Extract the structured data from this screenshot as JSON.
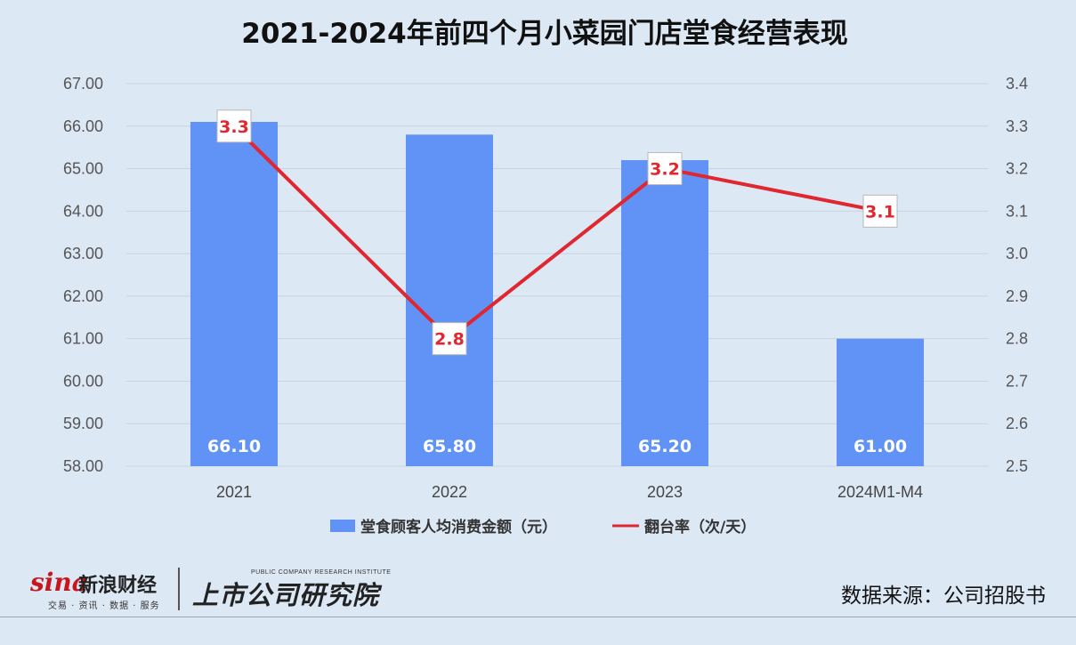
{
  "colors": {
    "background": "#dde8f5",
    "bar": "#6192f5",
    "line": "#e0262e",
    "grid": "#c9d3df"
  },
  "chart_data": {
    "type": "bar",
    "title": "2021-2024年前四个月小菜园门店堂食经营表现",
    "categories": [
      "2021",
      "2022",
      "2023",
      "2024M1-M4"
    ],
    "series": [
      {
        "name": "堂食顾客人均消费金额（元）",
        "type": "bar",
        "axis": "left",
        "values": [
          66.1,
          65.8,
          65.2,
          61.0
        ],
        "labels": [
          "66.10",
          "65.80",
          "65.20",
          "61.00"
        ]
      },
      {
        "name": "翻台率（次/天）",
        "type": "line",
        "axis": "right",
        "values": [
          3.3,
          2.8,
          3.2,
          3.1
        ],
        "labels": [
          "3.3",
          "2.8",
          "3.2",
          "3.1"
        ]
      }
    ],
    "ylim_left": [
      58,
      67
    ],
    "yticks_left": [
      "58.00",
      "59.00",
      "60.00",
      "61.00",
      "62.00",
      "63.00",
      "64.00",
      "65.00",
      "66.00",
      "67.00"
    ],
    "ylim_right": [
      2.5,
      3.4
    ],
    "yticks_right": [
      "2.5",
      "2.6",
      "2.7",
      "2.8",
      "2.9",
      "3.0",
      "3.1",
      "3.2",
      "3.3",
      "3.4"
    ],
    "grid": true,
    "legend_position": "bottom-center"
  },
  "footer": {
    "sina_word": "sina",
    "sina_name": "新浪财经",
    "sina_tagline": "交易 · 资讯 · 数据 · 服务",
    "institute_en": "PUBLIC COMPANY RESEARCH INSTITUTE",
    "institute_cn": "上市公司研究院",
    "source": "数据来源：公司招股书"
  }
}
